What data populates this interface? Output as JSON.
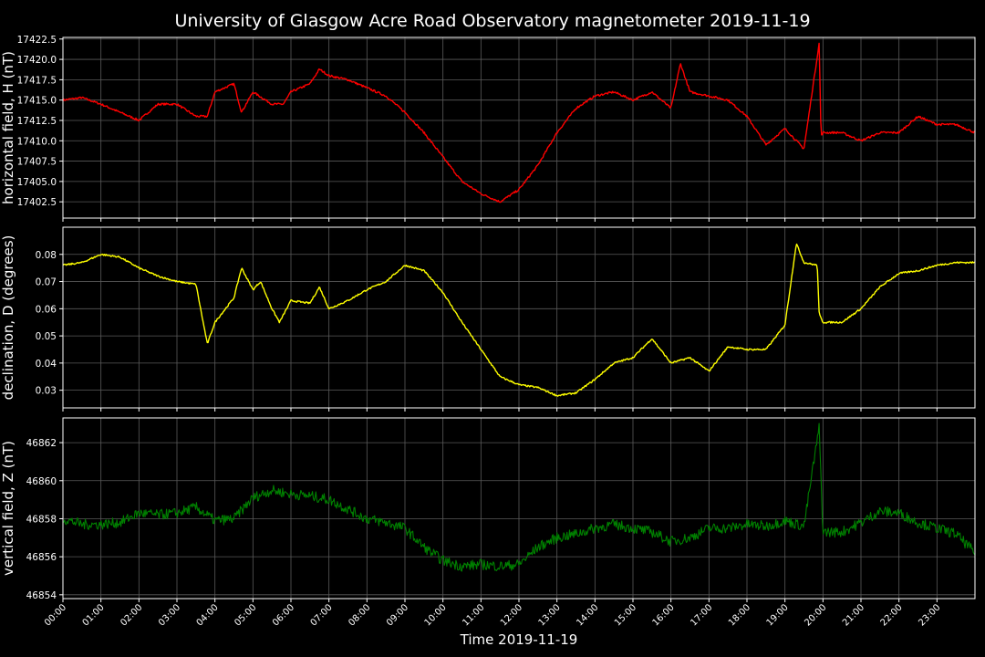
{
  "title": "University of Glasgow Acre Road Observatory magnetometer 2019-11-19",
  "xlabel": "Time 2019-11-19",
  "xticks": [
    "00:00",
    "01:00",
    "02:00",
    "03:00",
    "04:00",
    "05:00",
    "06:00",
    "07:00",
    "08:00",
    "09:00",
    "10:00",
    "11:00",
    "12:00",
    "13:00",
    "14:00",
    "15:00",
    "16:00",
    "17:00",
    "18:00",
    "19:00",
    "20:00",
    "21:00",
    "22:00",
    "23:00"
  ],
  "chart_data": [
    {
      "type": "line",
      "ylabel": "horizontal field, H (nT)",
      "color": "#ff0000",
      "xlim": [
        0,
        24
      ],
      "ylim": [
        17400.5,
        17422.7
      ],
      "yticks": [
        "17402.5",
        "17405.0",
        "17407.5",
        "17410.0",
        "17412.5",
        "17415.0",
        "17417.5",
        "17420.0",
        "17422.5"
      ],
      "grid": true,
      "series": [
        {
          "x": [
            0,
            0.5,
            1,
            1.5,
            2,
            2.5,
            3,
            3.5,
            3.8,
            4,
            4.5,
            4.7,
            5,
            5.5,
            5.8,
            6,
            6.5,
            6.75,
            7,
            7.5,
            8,
            8.5,
            9,
            9.5,
            10,
            10.5,
            11,
            11.5,
            12,
            12.5,
            13,
            13.5,
            14,
            14.5,
            15,
            15.5,
            16,
            16.25,
            16.5,
            17,
            17.5,
            18,
            18.5,
            19,
            19.5,
            19.9,
            19.95,
            20,
            20.5,
            21,
            21.5,
            22,
            22.5,
            23,
            23.5,
            24
          ],
          "y": [
            17415.0,
            17415.3,
            17414.5,
            17413.5,
            17412.5,
            17414.5,
            17414.5,
            17413.0,
            17413.0,
            17416.0,
            17417.0,
            17413.5,
            17416.0,
            17414.5,
            17414.5,
            17416.0,
            17417.0,
            17418.8,
            17418.0,
            17417.5,
            17416.5,
            17415.5,
            17413.5,
            17411.0,
            17408.0,
            17405.0,
            17403.5,
            17402.5,
            17404.0,
            17407.0,
            17411.0,
            17414.0,
            17415.5,
            17416.0,
            17415.0,
            17416.0,
            17414.0,
            17419.5,
            17416.0,
            17415.5,
            17415.0,
            17413.0,
            17409.5,
            17411.5,
            17409.0,
            17422.0,
            17410.5,
            17411.0,
            17411.0,
            17410.0,
            17411.0,
            17411.0,
            17413.0,
            17412.0,
            17412.0,
            17411.0
          ]
        }
      ]
    },
    {
      "type": "line",
      "ylabel": "declination, D (degrees)",
      "color": "#ffff00",
      "xlim": [
        0,
        24
      ],
      "ylim": [
        0.0235,
        0.09
      ],
      "yticks": [
        "0.03",
        "0.04",
        "0.05",
        "0.06",
        "0.07",
        "0.08"
      ],
      "grid": true,
      "series": [
        {
          "x": [
            0,
            0.5,
            1,
            1.5,
            2,
            2.5,
            3,
            3.5,
            3.8,
            4,
            4.5,
            4.7,
            5,
            5.2,
            5.5,
            5.7,
            6,
            6.5,
            6.75,
            7,
            7.5,
            8,
            8.5,
            9,
            9.5,
            10,
            10.5,
            11,
            11.5,
            12,
            12.5,
            13,
            13.5,
            14,
            14.5,
            15,
            15.5,
            16,
            16.5,
            17,
            17.5,
            18,
            18.5,
            19,
            19.3,
            19.5,
            19.85,
            19.9,
            20,
            20.5,
            21,
            21.5,
            22,
            22.5,
            23,
            23.5,
            24
          ],
          "y": [
            0.076,
            0.077,
            0.08,
            0.079,
            0.075,
            0.072,
            0.07,
            0.069,
            0.047,
            0.055,
            0.064,
            0.075,
            0.067,
            0.07,
            0.06,
            0.055,
            0.063,
            0.062,
            0.068,
            0.06,
            0.063,
            0.067,
            0.07,
            0.076,
            0.074,
            0.066,
            0.055,
            0.045,
            0.035,
            0.032,
            0.031,
            0.028,
            0.029,
            0.034,
            0.04,
            0.042,
            0.049,
            0.04,
            0.042,
            0.037,
            0.046,
            0.045,
            0.045,
            0.054,
            0.084,
            0.077,
            0.076,
            0.058,
            0.055,
            0.055,
            0.06,
            0.068,
            0.073,
            0.074,
            0.076,
            0.077,
            0.077
          ]
        }
      ]
    },
    {
      "type": "line",
      "ylabel": "vertical field, Z (nT)",
      "color": "#008000",
      "xlim": [
        0,
        24
      ],
      "ylim": [
        46853.8,
        46863.3
      ],
      "yticks": [
        "46854",
        "46856",
        "46858",
        "46860",
        "46862"
      ],
      "grid": true,
      "series": [
        {
          "x": [
            0,
            0.5,
            1,
            1.5,
            2,
            2.5,
            3,
            3.5,
            4,
            4.5,
            5,
            5.5,
            6,
            6.5,
            7,
            7.5,
            8,
            8.5,
            9,
            9.5,
            10,
            10.5,
            11,
            11.5,
            12,
            12.5,
            13,
            13.5,
            14,
            14.5,
            15,
            15.5,
            16,
            16.5,
            17,
            17.5,
            18,
            18.5,
            19,
            19.5,
            19.9,
            20,
            20.5,
            21,
            21.5,
            22,
            22.5,
            23,
            23.5,
            24
          ],
          "y": [
            46858.0,
            46857.7,
            46857.7,
            46857.8,
            46858.3,
            46858.2,
            46858.3,
            46858.6,
            46857.9,
            46858.0,
            46859.1,
            46859.5,
            46859.3,
            46859.2,
            46859.0,
            46858.5,
            46858.0,
            46857.8,
            46857.5,
            46856.5,
            46855.8,
            46855.5,
            46855.6,
            46855.5,
            46855.6,
            46856.5,
            46857.0,
            46857.2,
            46857.5,
            46857.7,
            46857.5,
            46857.3,
            46856.8,
            46857.0,
            46857.5,
            46857.5,
            46857.7,
            46857.6,
            46857.9,
            46857.6,
            46862.8,
            46857.3,
            46857.3,
            46857.8,
            46858.4,
            46858.3,
            46857.8,
            46857.5,
            46857.2,
            46856.2
          ]
        }
      ]
    }
  ]
}
